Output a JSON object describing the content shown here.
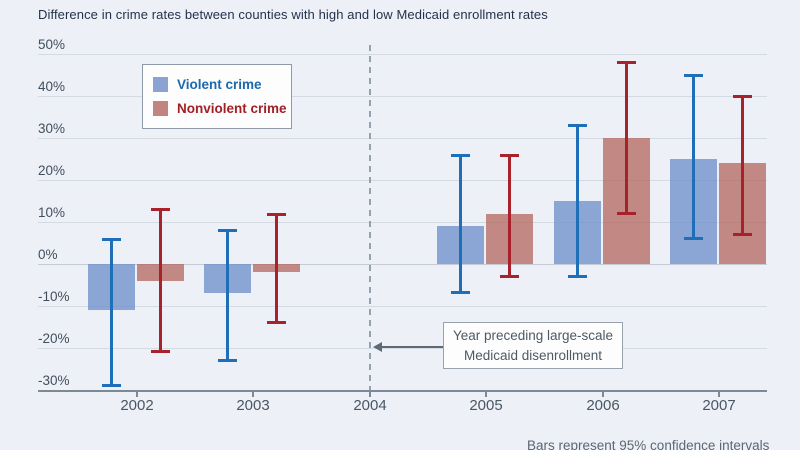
{
  "page": {
    "title": "Difference in crime rates between counties with high and low Medicaid enrollment rates",
    "caption": "Bars represent 95% confidence intervals"
  },
  "legend": {
    "items": [
      {
        "label": "Violent crime",
        "swatch_color": "#8ba3d4",
        "text_color": "#1b6aac"
      },
      {
        "label": "Nonviolent crime",
        "swatch_color": "#c1847f",
        "text_color": "#a02026"
      }
    ]
  },
  "annotation": {
    "line1": "Year preceding large-scale",
    "line2": "Medicaid disenrollment"
  },
  "chart_data": {
    "type": "bar",
    "title": "Difference in crime rates between counties with high and low Medicaid enrollment rates",
    "categories": [
      "2002",
      "2003",
      "2004",
      "2005",
      "2006",
      "2007"
    ],
    "reference_category": "2004",
    "annotation": "Year preceding large-scale Medicaid disenrollment",
    "caption": "Bars represent 95% confidence intervals",
    "grid": true,
    "legend_position": "top-left",
    "y_axis": {
      "unit": "%",
      "min": -30,
      "max": 50,
      "step": 10,
      "tick_labels": [
        "50%",
        "40%",
        "30%",
        "20%",
        "10%",
        "0%",
        "-10%",
        "-20%",
        "-30%"
      ]
    },
    "series": [
      {
        "name": "Violent crime",
        "bar_color": "rgba(112,144,202,0.78)",
        "error_color": "#1e6fb7",
        "values": [
          -11,
          -7,
          null,
          9,
          15,
          25
        ],
        "ci_high": [
          6,
          8,
          null,
          26,
          33,
          45
        ],
        "ci_low": [
          -29,
          -23,
          null,
          -7,
          -3,
          6
        ]
      },
      {
        "name": "Nonviolent crime",
        "bar_color": "rgba(178,96,88,0.72)",
        "error_color": "#a8222b",
        "values": [
          -4,
          -2,
          null,
          12,
          30,
          24
        ],
        "ci_high": [
          13,
          12,
          null,
          26,
          48,
          40
        ],
        "ci_low": [
          -21,
          -14,
          null,
          -3,
          12,
          7
        ]
      }
    ]
  }
}
